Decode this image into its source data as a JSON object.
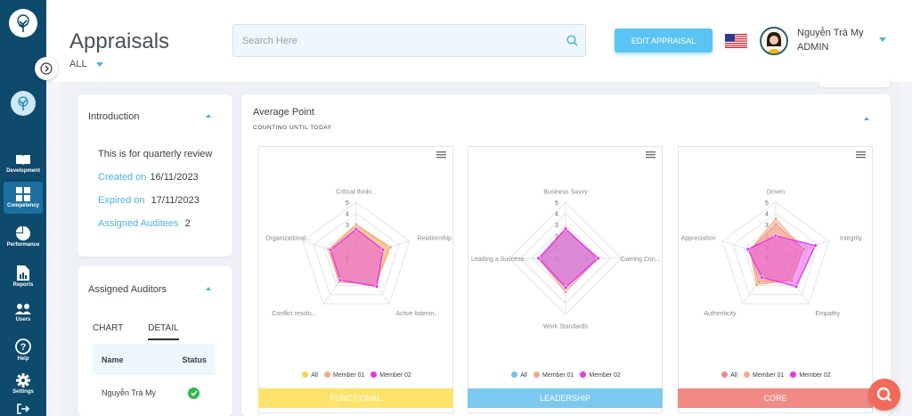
{
  "header": {
    "title": "Appraisals",
    "filter": "ALL",
    "search_placeholder": "Search Here",
    "edit_button": "EDIT APPRAISAL",
    "user_name": "Nguyễn Trà My",
    "user_role": "ADMIN"
  },
  "sidebar": {
    "items": [
      {
        "label": "Development",
        "icon": "book-icon"
      },
      {
        "label": "Competency",
        "icon": "grid-icon"
      },
      {
        "label": "Performance",
        "icon": "pie-chart-icon"
      },
      {
        "label": "Reports",
        "icon": "report-icon"
      },
      {
        "label": "Users",
        "icon": "users-icon"
      },
      {
        "label": "Help",
        "icon": "help-icon"
      },
      {
        "label": "Settings",
        "icon": "gear-icon"
      }
    ]
  },
  "introduction": {
    "title": "Introduction",
    "description": "This is for quarterly review",
    "created_label": "Created on",
    "created_value": "16/11/2023",
    "expired_label": "Expired on",
    "expired_value": "17/11/2023",
    "auditees_label": "Assigned Auditees",
    "auditees_value": "2"
  },
  "auditors": {
    "title": "Assigned Auditors",
    "tabs": [
      "CHART",
      "DETAIL"
    ],
    "columns": [
      "Name",
      "Status"
    ],
    "rows": [
      {
        "name": "Nguyễn Trà My",
        "status": "done"
      }
    ]
  },
  "average": {
    "title": "Average Point",
    "subtitle": "COUNTING UNTIL TODAY"
  },
  "colors": {
    "all": "#f5d547",
    "member01": "#f3a98a",
    "member02": "#e639e8"
  },
  "chart_data": [
    {
      "type": "radar",
      "title": "FUNCTIONAL",
      "footer_color": "#fde36b",
      "axes": [
        "Critical thinki...",
        "Relationship",
        "Active listenin...",
        "Conflict resolu...",
        "Organizational..."
      ],
      "rlim": [
        0,
        5
      ],
      "ticks": [
        "0",
        "1",
        "2",
        "3",
        "4",
        "5"
      ],
      "legend": [
        "All",
        "Member 01",
        "Member 02"
      ],
      "legend_colors": [
        "#f5d547",
        "#f3a98a",
        "#e639e8"
      ],
      "series": [
        {
          "name": "All",
          "values": [
            3.0,
            3.0,
            3.0,
            2.5,
            2.5
          ]
        },
        {
          "name": "Member 01",
          "values": [
            3.0,
            3.2,
            2.9,
            2.6,
            2.6
          ]
        },
        {
          "name": "Member 02",
          "values": [
            2.6,
            2.5,
            3.1,
            2.4,
            2.4
          ]
        }
      ]
    },
    {
      "type": "radar",
      "title": "LEADERSHIP",
      "footer_color": "#7cc9f0",
      "axes": [
        "Business Savvy",
        "Gaining Con...",
        "Work Standards",
        "Leading a Success..."
      ],
      "rlim": [
        0,
        5
      ],
      "ticks": [
        "0",
        "1",
        "2",
        "3",
        "4",
        "5"
      ],
      "legend": [
        "All",
        "Member 01",
        "Member 02"
      ],
      "legend_colors": [
        "#6ec6ea",
        "#f3a98a",
        "#e639e8"
      ],
      "series": [
        {
          "name": "All",
          "values": [
            2.6,
            2.8,
            2.6,
            2.2
          ]
        },
        {
          "name": "Member 01",
          "values": [
            2.7,
            2.8,
            3.0,
            2.4
          ]
        },
        {
          "name": "Member 02",
          "values": [
            2.6,
            2.9,
            2.6,
            2.4
          ]
        }
      ]
    },
    {
      "type": "radar",
      "title": "CORE",
      "footer_color": "#f28b85",
      "axes": [
        "Driven",
        "Integrity",
        "Empathy",
        "Authenticity",
        "Appreciation"
      ],
      "rlim": [
        0,
        5
      ],
      "ticks": [
        "0",
        "1",
        "2",
        "3",
        "4",
        "5"
      ],
      "legend": [
        "All",
        "Member 01",
        "Member 02"
      ],
      "legend_colors": [
        "#f28b85",
        "#f3a98a",
        "#e639e8"
      ],
      "series": [
        {
          "name": "All",
          "values": [
            3.0,
            2.6,
            2.4,
            2.6,
            2.4
          ]
        },
        {
          "name": "Member 01",
          "values": [
            3.5,
            2.6,
            2.4,
            2.9,
            2.4
          ]
        },
        {
          "name": "Member 02",
          "values": [
            2.0,
            3.7,
            3.1,
            2.1,
            2.6
          ]
        }
      ]
    }
  ]
}
